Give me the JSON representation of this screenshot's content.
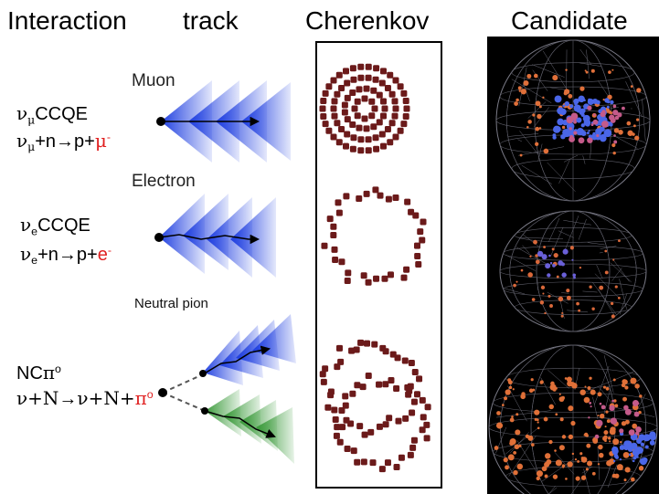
{
  "headers": {
    "interaction": "Interaction",
    "track": "track",
    "cherenkov": "Cherenkov",
    "candidate": "Candidate"
  },
  "track_labels": {
    "muon": "Muon",
    "electron": "Electron",
    "neutral_pion": "Neutral pion"
  },
  "interactions": [
    {
      "name": {
        "nu": "ν",
        "sub": "μ",
        "rest": "CCQE"
      },
      "reaction": {
        "nu": "ν",
        "sub": "μ",
        "mid": "+n",
        "arrow": "→",
        "prod": "p+",
        "lepton": "μ",
        "charge": "-"
      }
    },
    {
      "name": {
        "nu": "ν",
        "sub": "e",
        "rest": "CCQE"
      },
      "reaction": {
        "nu": "ν",
        "sub": "e",
        "mid": "+n",
        "arrow": "→",
        "prod": "p+",
        "lepton": "e",
        "charge": "-"
      }
    },
    {
      "name": {
        "pre": "NC",
        "pi": "π",
        "sup": "o"
      },
      "reaction": {
        "pre": "ν+N",
        "arrow": "→",
        "prod": "ν+N+",
        "pi": "π",
        "sup": "o"
      }
    }
  ],
  "colors": {
    "muon_cone": "#1f3fe0",
    "electron_cone": "#1f3fe0",
    "photon_cone": "#3a9a3a",
    "cherenkov_hit": "#6b1a1a",
    "highlight_red": "#e02020",
    "candidate_bg": "#000000"
  },
  "cherenkov_patterns": [
    "concentric-sharp-rings",
    "fuzzy-single-ring",
    "two-overlapping-fuzzy-rings"
  ],
  "candidate_events": [
    "muon-like-event-display",
    "electron-like-event-display",
    "pi0-like-event-display"
  ]
}
